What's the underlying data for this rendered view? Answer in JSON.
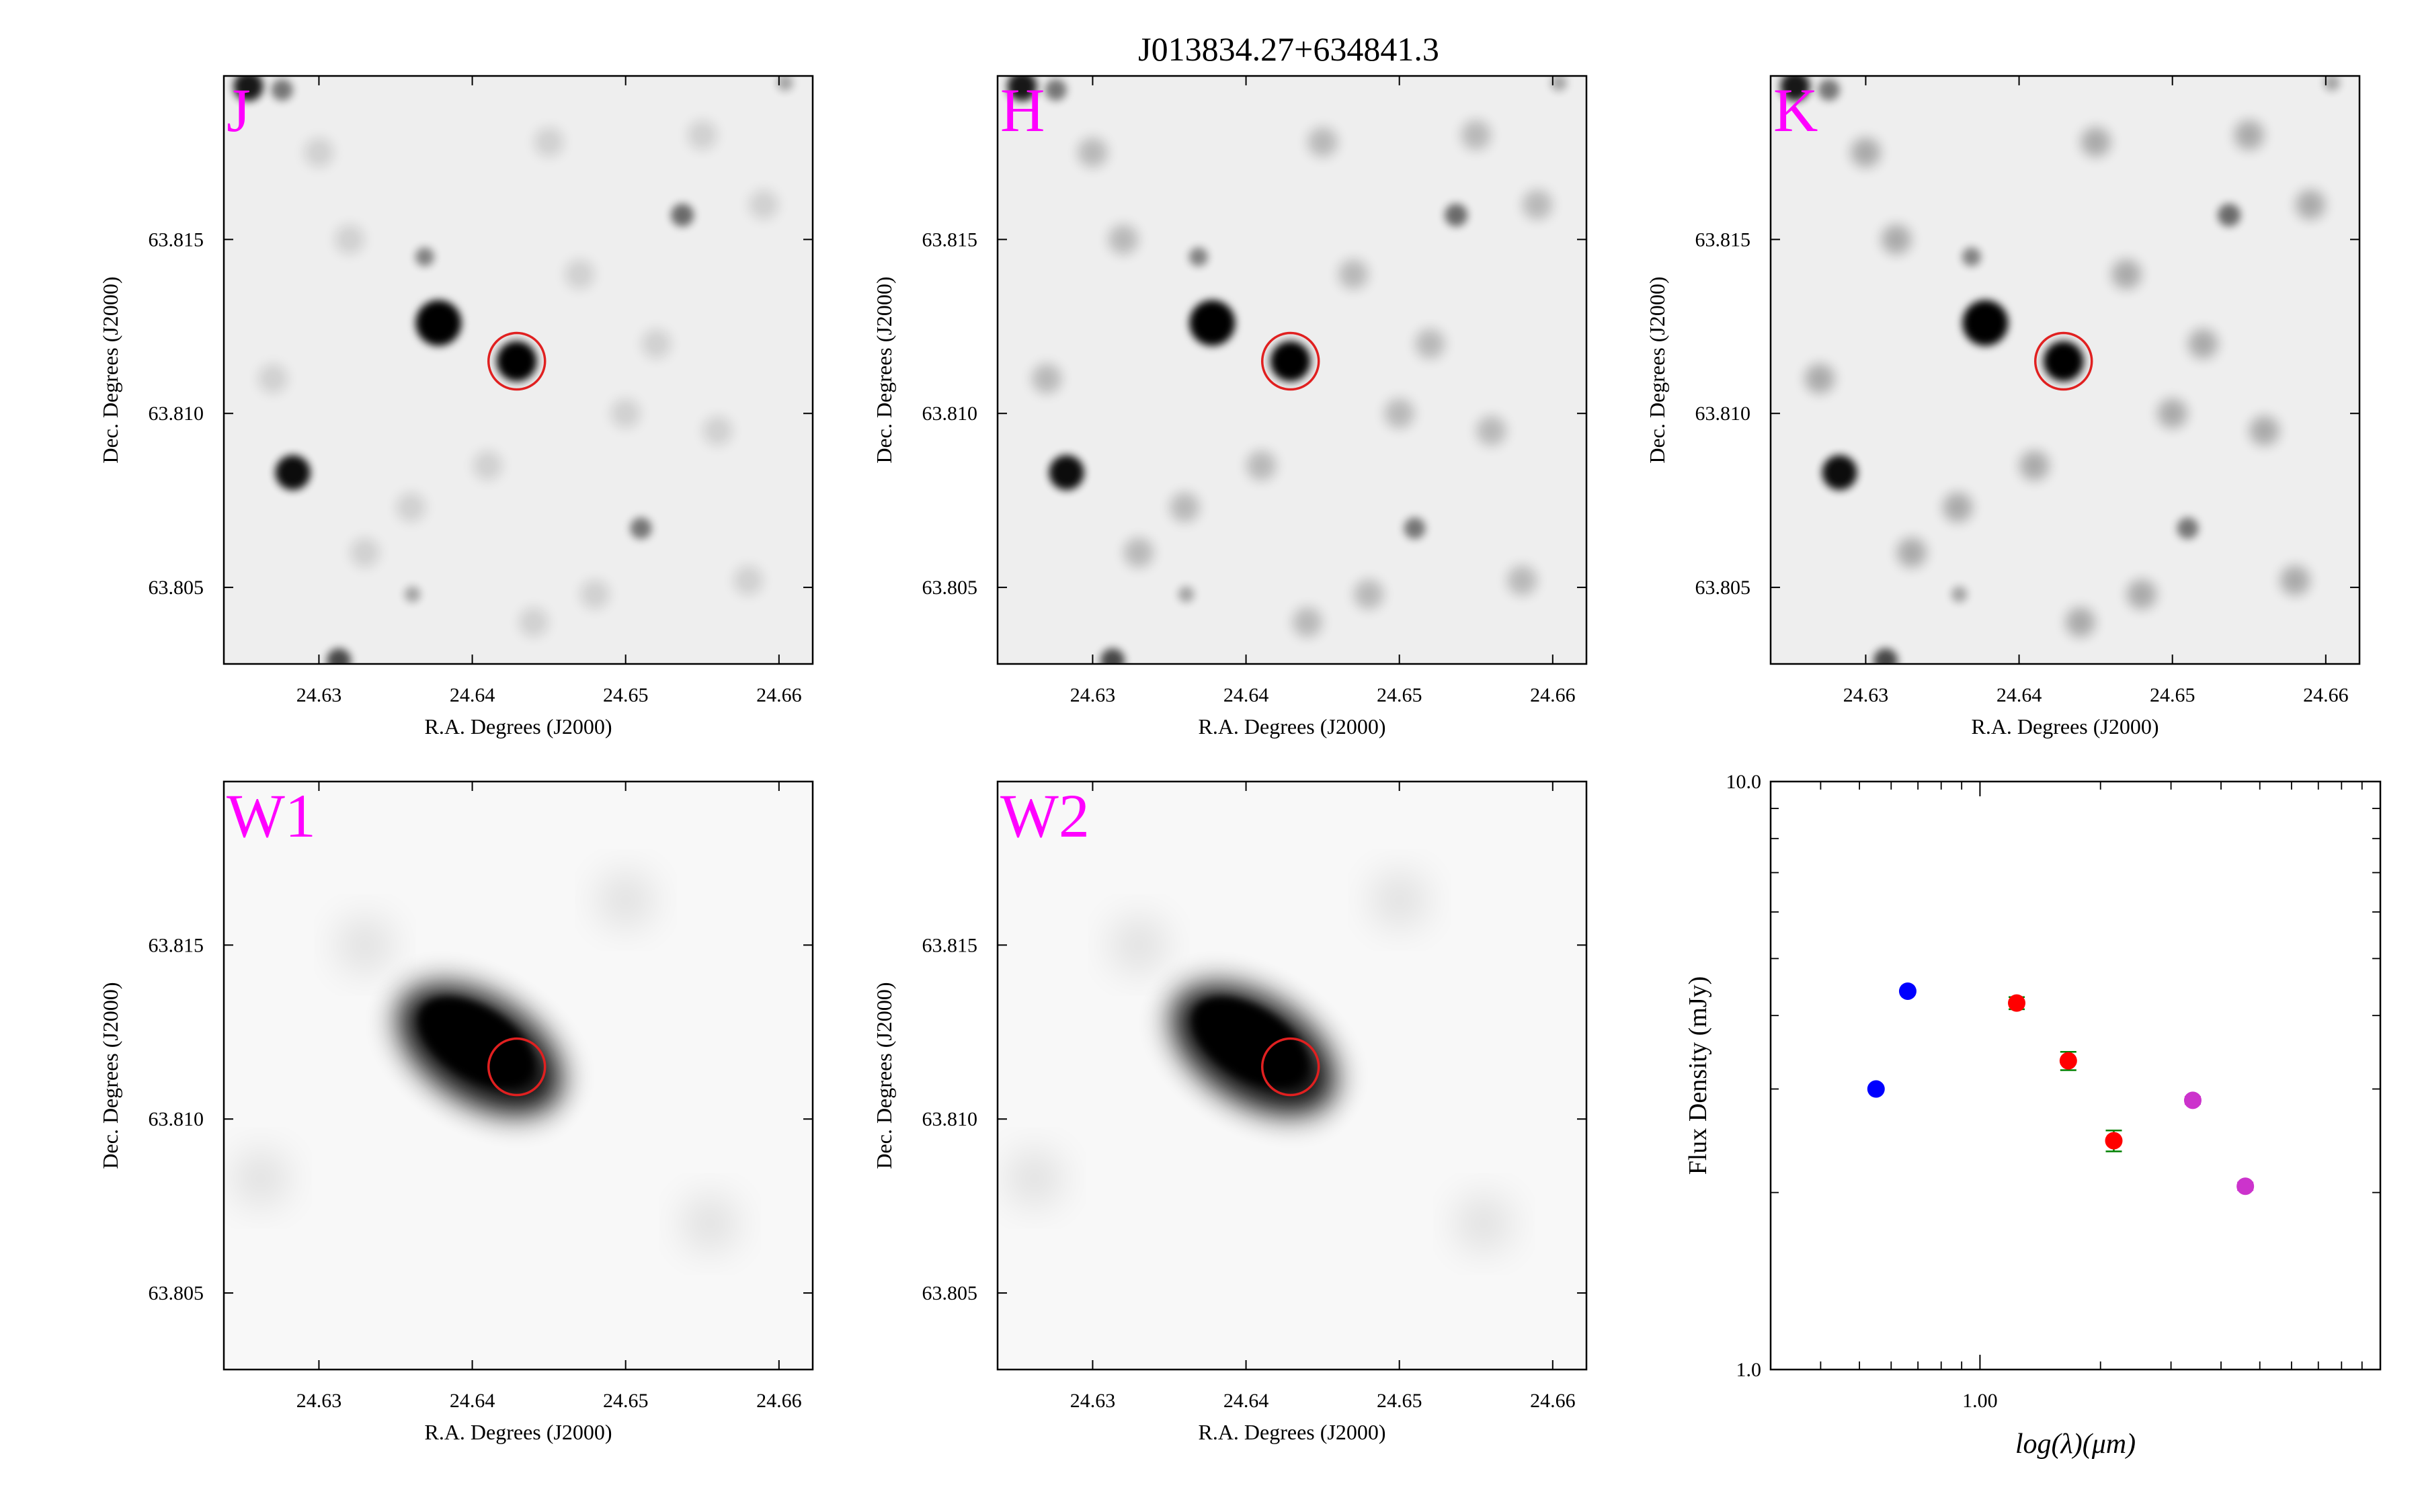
{
  "figure": {
    "title": "J013834.27+634841.3"
  },
  "cutouts": {
    "xlabel": "R.A. Degrees (J2000)",
    "ylabel": "Dec. Degrees (J2000)",
    "xlim": [
      24.6238,
      24.6622
    ],
    "ylim": [
      63.8028,
      63.8197
    ],
    "xticks": [
      24.63,
      24.64,
      24.65,
      24.66
    ],
    "xticklabels": [
      "24.63",
      "24.64",
      "24.65",
      "24.66"
    ],
    "yticks": [
      63.805,
      63.81,
      63.815
    ],
    "yticklabels": [
      "63.805",
      "63.810",
      "63.815"
    ],
    "target": {
      "ra": 24.6429,
      "dec": 63.8115
    },
    "label_color": "#ff00ff",
    "marker_color": "#e02020",
    "panels": [
      {
        "band": "J",
        "image": "point-sources"
      },
      {
        "band": "H",
        "image": "point-sources"
      },
      {
        "band": "K",
        "image": "point-sources"
      },
      {
        "band": "W1",
        "image": "blended-source"
      },
      {
        "band": "W2",
        "image": "blended-source"
      }
    ]
  },
  "chart_data": {
    "type": "scatter",
    "xlabel": "log(λ)(μm)",
    "ylabel": "Flux Density (mJy)",
    "xscale": "log",
    "yscale": "log",
    "xlim": [
      0.3,
      10.0
    ],
    "ylim": [
      1.0,
      10.0
    ],
    "xticks": [
      1.0
    ],
    "xticklabels": [
      "1.00"
    ],
    "yticks": [
      1.0,
      10.0
    ],
    "yticklabels": [
      "1.0",
      "10.0"
    ],
    "grid": false,
    "series": [
      {
        "color": "#0000ff",
        "x": [
          0.55,
          0.66
        ],
        "y": [
          3.0,
          4.4
        ],
        "err": [
          0.0,
          0.0
        ]
      },
      {
        "color": "#ff0000",
        "errcolor": "#008000",
        "x": [
          1.235,
          1.662,
          2.159
        ],
        "y": [
          4.2,
          3.35,
          2.45
        ],
        "err": [
          0.1,
          0.12,
          0.1
        ]
      },
      {
        "color": "#cc33cc",
        "x": [
          3.4,
          4.6
        ],
        "y": [
          2.87,
          2.05
        ],
        "err": [
          0.04,
          0.03
        ]
      }
    ]
  }
}
